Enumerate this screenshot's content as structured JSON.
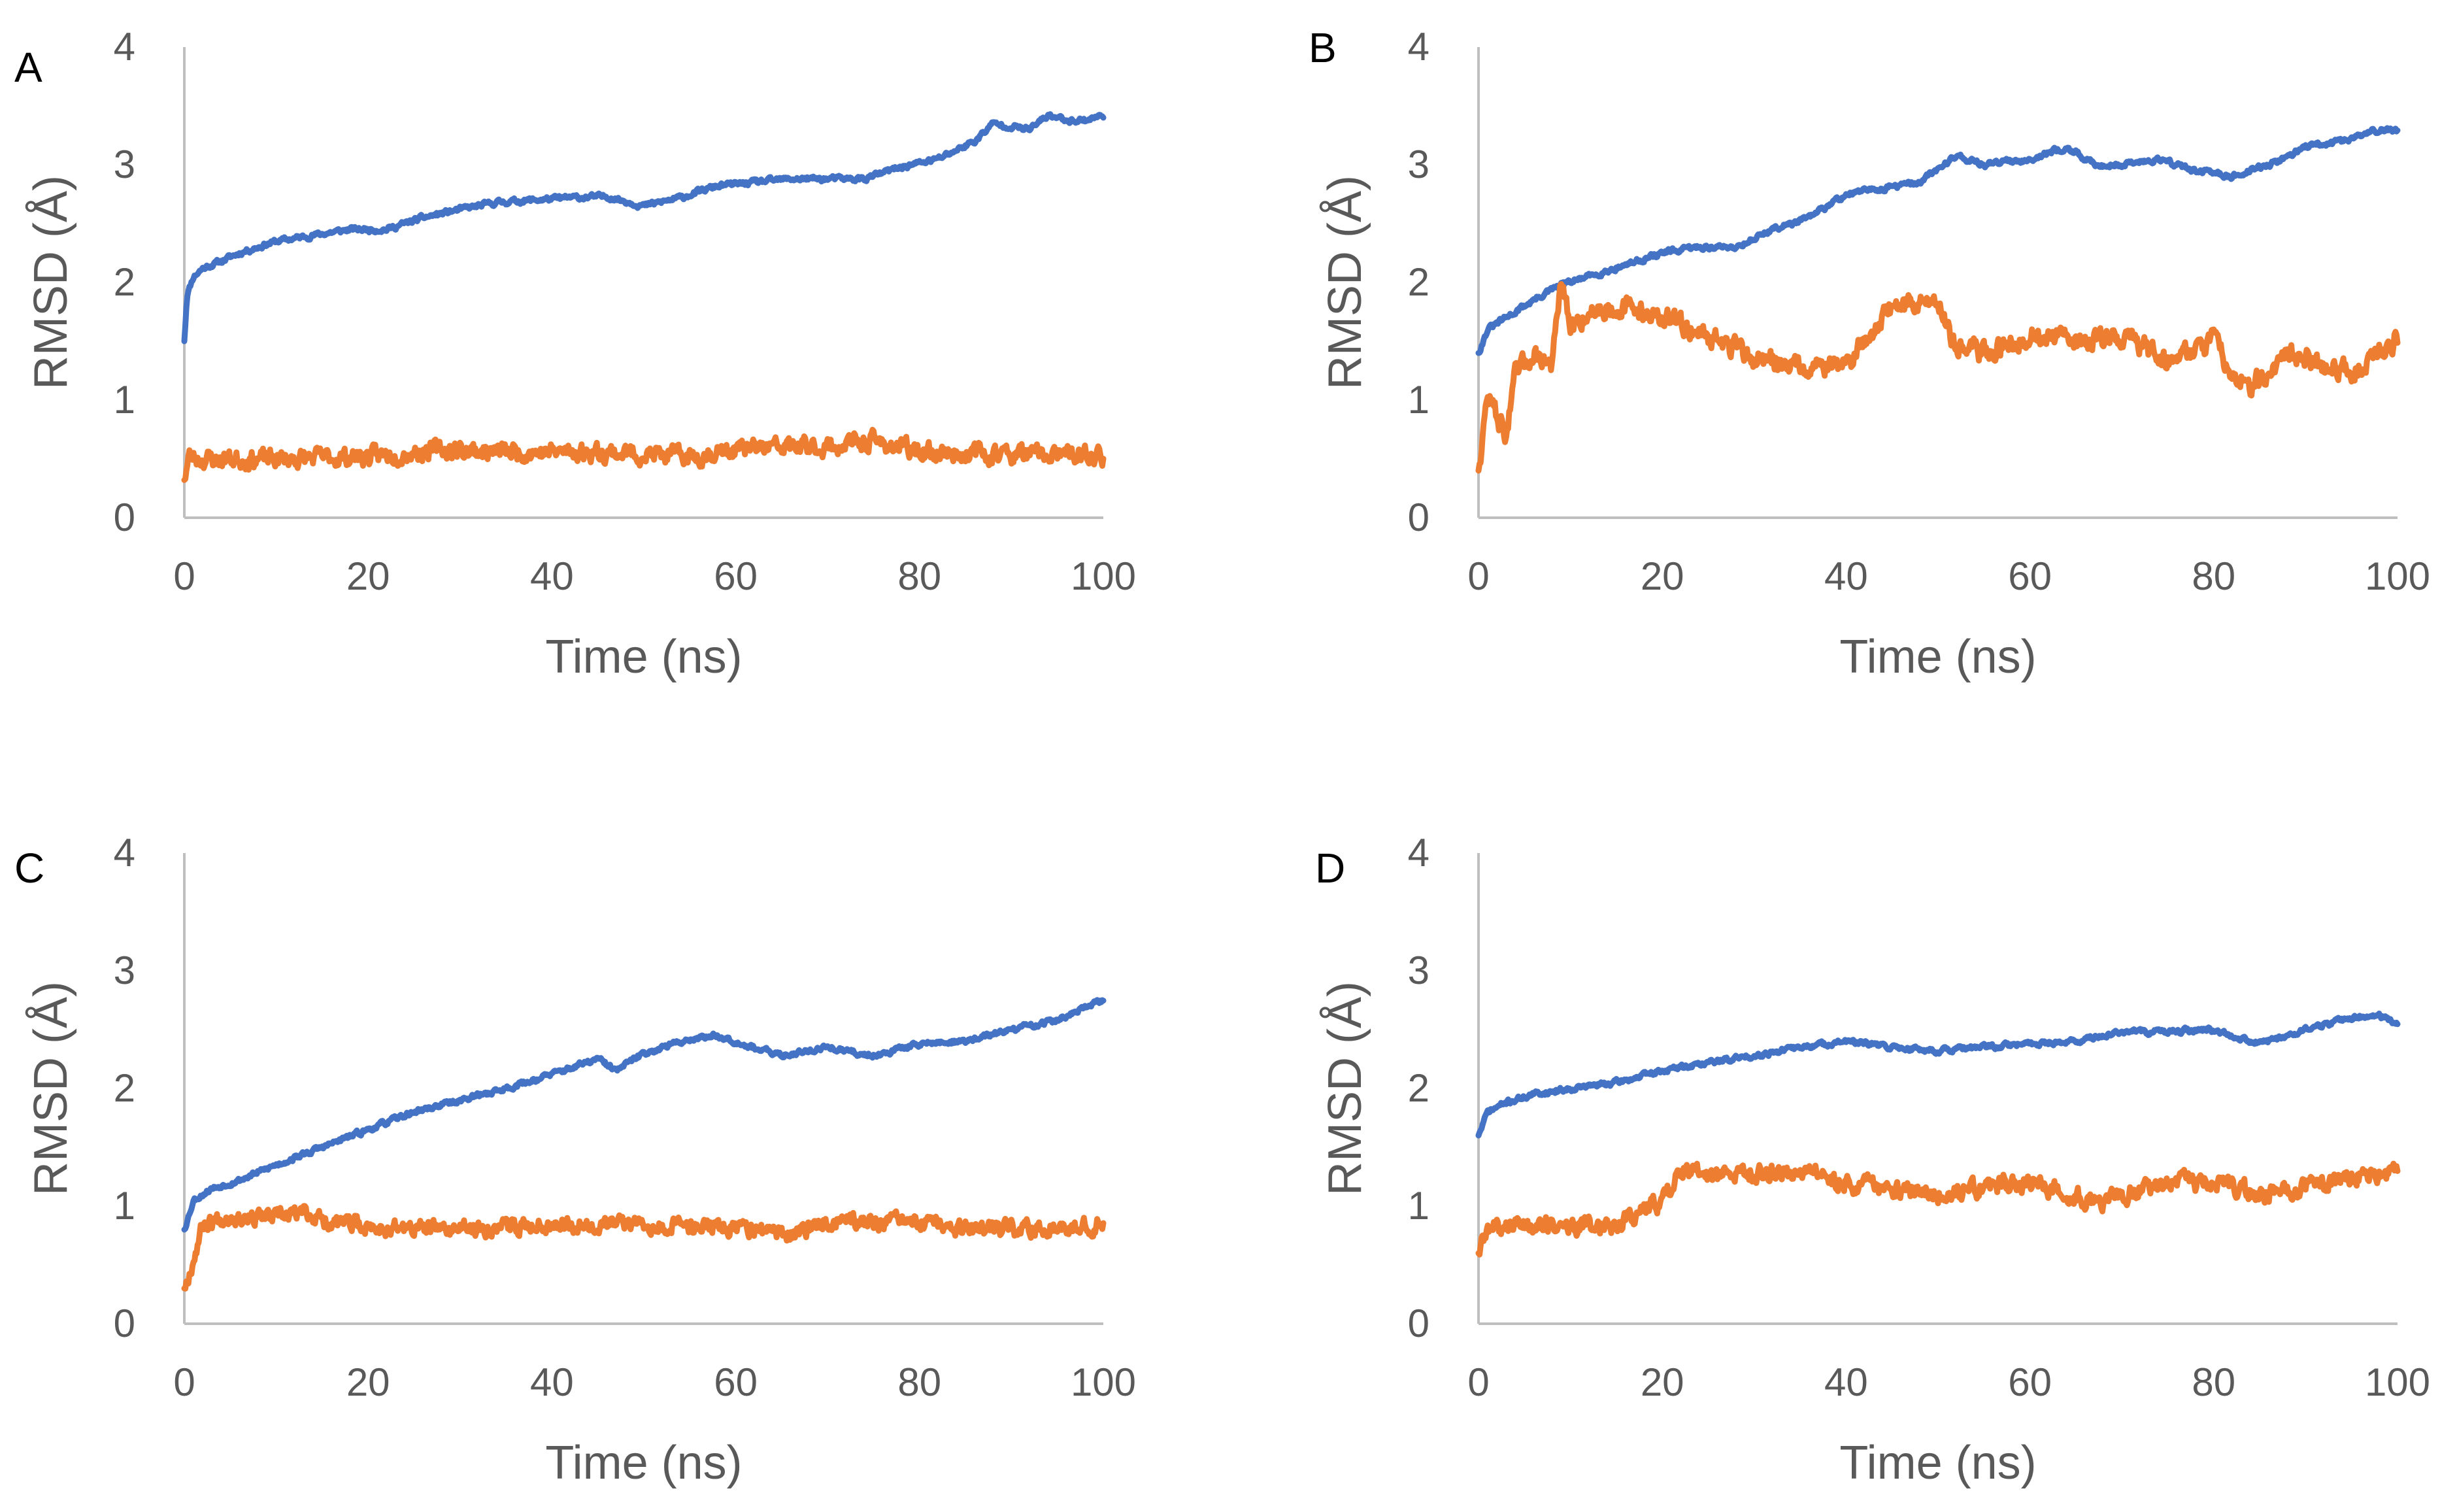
{
  "colors": {
    "blue_series": "#4472C4",
    "orange_series": "#ED7D31",
    "axis": "#bfbfbf",
    "tick_text": "#595959"
  },
  "chart_data": [
    {
      "type": "line",
      "panel_label": "A",
      "xlabel": "Time (ns)",
      "ylabel": "RMSD (Å)",
      "xlim": [
        0,
        100
      ],
      "ylim": [
        0,
        4
      ],
      "xticks": [
        0,
        20,
        40,
        60,
        80,
        100
      ],
      "yticks": [
        0,
        1,
        2,
        3,
        4
      ],
      "grid": false,
      "series": [
        {
          "name": "blue",
          "color": "#4472C4",
          "noise": 0.02,
          "seed": 11,
          "x": [
            0,
            0.3,
            1,
            2,
            4,
            6,
            10,
            14,
            18,
            22,
            26,
            30,
            34,
            38,
            42,
            46,
            50,
            54,
            58,
            62,
            66,
            70,
            74,
            78,
            82,
            86,
            88,
            92,
            94,
            96,
            98,
            100
          ],
          "y": [
            1.5,
            1.9,
            2.05,
            2.12,
            2.18,
            2.25,
            2.35,
            2.4,
            2.45,
            2.45,
            2.55,
            2.62,
            2.68,
            2.7,
            2.72,
            2.73,
            2.65,
            2.72,
            2.82,
            2.85,
            2.88,
            2.88,
            2.88,
            2.98,
            3.05,
            3.2,
            3.35,
            3.3,
            3.42,
            3.38,
            3.38,
            3.42
          ]
        },
        {
          "name": "orange",
          "color": "#ED7D31",
          "noise": 0.07,
          "seed": 23,
          "x": [
            0,
            0.5,
            2,
            10,
            20,
            28,
            35,
            45,
            55,
            60,
            65,
            70,
            75,
            80,
            90,
            100
          ],
          "y": [
            0.32,
            0.52,
            0.5,
            0.5,
            0.52,
            0.58,
            0.56,
            0.56,
            0.52,
            0.58,
            0.6,
            0.6,
            0.65,
            0.56,
            0.54,
            0.52
          ]
        }
      ]
    },
    {
      "type": "line",
      "panel_label": "B",
      "xlabel": "Time (ns)",
      "ylabel": "RMSD (Å)",
      "xlim": [
        0,
        100
      ],
      "ylim": [
        0,
        4
      ],
      "xticks": [
        0,
        20,
        40,
        60,
        80,
        100
      ],
      "yticks": [
        0,
        1,
        2,
        3,
        4
      ],
      "grid": false,
      "series": [
        {
          "name": "blue",
          "color": "#4472C4",
          "noise": 0.02,
          "seed": 31,
          "x": [
            0,
            1,
            3,
            6,
            9,
            12,
            16,
            20,
            24,
            28,
            32,
            36,
            40,
            44,
            48,
            52,
            55,
            60,
            64,
            67,
            70,
            74,
            78,
            82,
            86,
            90,
            94,
            98,
            100
          ],
          "y": [
            1.4,
            1.6,
            1.7,
            1.85,
            1.98,
            2.05,
            2.15,
            2.25,
            2.3,
            2.3,
            2.45,
            2.55,
            2.75,
            2.8,
            2.85,
            3.08,
            3.0,
            3.05,
            3.15,
            3.0,
            3.0,
            3.05,
            2.95,
            2.9,
            3.0,
            3.15,
            3.2,
            3.3,
            3.28
          ]
        },
        {
          "name": "orange",
          "color": "#ED7D31",
          "noise": 0.08,
          "seed": 47,
          "x": [
            0,
            1,
            3,
            4,
            6,
            8,
            9,
            10,
            12,
            15,
            18,
            20,
            25,
            30,
            35,
            40,
            45,
            50,
            52,
            55,
            60,
            65,
            70,
            75,
            80,
            82,
            84,
            88,
            92,
            96,
            100
          ],
          "y": [
            0.4,
            1.05,
            0.7,
            1.2,
            1.4,
            1.3,
            2.0,
            1.6,
            1.75,
            1.8,
            1.75,
            1.7,
            1.55,
            1.35,
            1.3,
            1.3,
            1.8,
            1.85,
            1.45,
            1.4,
            1.55,
            1.5,
            1.55,
            1.35,
            1.5,
            1.25,
            1.1,
            1.4,
            1.3,
            1.25,
            1.55
          ]
        }
      ]
    },
    {
      "type": "line",
      "panel_label": "C",
      "xlabel": "Time (ns)",
      "ylabel": "RMSD (Å)",
      "xlim": [
        0,
        100
      ],
      "ylim": [
        0,
        4
      ],
      "xticks": [
        0,
        20,
        40,
        60,
        80,
        100
      ],
      "yticks": [
        0,
        1,
        2,
        3,
        4
      ],
      "grid": false,
      "series": [
        {
          "name": "blue",
          "color": "#4472C4",
          "noise": 0.02,
          "seed": 53,
          "x": [
            0,
            1,
            3,
            6,
            10,
            15,
            20,
            25,
            30,
            35,
            40,
            45,
            47,
            50,
            55,
            58,
            60,
            63,
            65,
            70,
            73,
            75,
            80,
            85,
            90,
            95,
            100
          ],
          "y": [
            0.8,
            1.05,
            1.15,
            1.22,
            1.35,
            1.5,
            1.65,
            1.8,
            1.9,
            2.0,
            2.12,
            2.25,
            2.15,
            2.3,
            2.42,
            2.45,
            2.4,
            2.32,
            2.28,
            2.35,
            2.3,
            2.28,
            2.38,
            2.4,
            2.5,
            2.58,
            2.75
          ]
        },
        {
          "name": "orange",
          "color": "#ED7D31",
          "noise": 0.06,
          "seed": 67,
          "x": [
            0,
            1,
            2,
            5,
            10,
            13,
            15,
            20,
            30,
            40,
            50,
            60,
            66,
            70,
            80,
            85,
            90,
            100
          ],
          "y": [
            0.3,
            0.55,
            0.85,
            0.92,
            0.9,
            0.95,
            0.88,
            0.82,
            0.8,
            0.85,
            0.85,
            0.82,
            0.75,
            0.88,
            0.85,
            0.8,
            0.8,
            0.85
          ]
        }
      ]
    },
    {
      "type": "line",
      "panel_label": "D",
      "xlabel": "Time (ns)",
      "ylabel": "RMSD (Å)",
      "xlim": [
        0,
        100
      ],
      "ylim": [
        0,
        4
      ],
      "xticks": [
        0,
        20,
        40,
        60,
        80,
        100
      ],
      "yticks": [
        0,
        1,
        2,
        3,
        4
      ],
      "grid": false,
      "series": [
        {
          "name": "blue",
          "color": "#4472C4",
          "noise": 0.02,
          "seed": 71,
          "x": [
            0,
            1,
            3,
            6,
            10,
            15,
            20,
            25,
            30,
            35,
            40,
            45,
            50,
            55,
            60,
            65,
            70,
            75,
            80,
            85,
            90,
            95,
            98,
            100
          ],
          "y": [
            1.6,
            1.8,
            1.88,
            1.95,
            2.0,
            2.05,
            2.15,
            2.22,
            2.28,
            2.35,
            2.4,
            2.35,
            2.32,
            2.35,
            2.38,
            2.4,
            2.48,
            2.48,
            2.5,
            2.38,
            2.5,
            2.6,
            2.62,
            2.55
          ]
        },
        {
          "name": "orange",
          "color": "#ED7D31",
          "noise": 0.07,
          "seed": 89,
          "x": [
            0,
            1,
            5,
            10,
            15,
            20,
            22,
            25,
            30,
            35,
            40,
            45,
            50,
            55,
            60,
            65,
            68,
            70,
            75,
            80,
            85,
            90,
            95,
            100
          ],
          "y": [
            0.6,
            0.8,
            0.85,
            0.82,
            0.85,
            1.05,
            1.3,
            1.25,
            1.28,
            1.3,
            1.2,
            1.15,
            1.1,
            1.15,
            1.2,
            1.1,
            1.0,
            1.1,
            1.2,
            1.2,
            1.1,
            1.15,
            1.25,
            1.3
          ]
        }
      ]
    }
  ]
}
